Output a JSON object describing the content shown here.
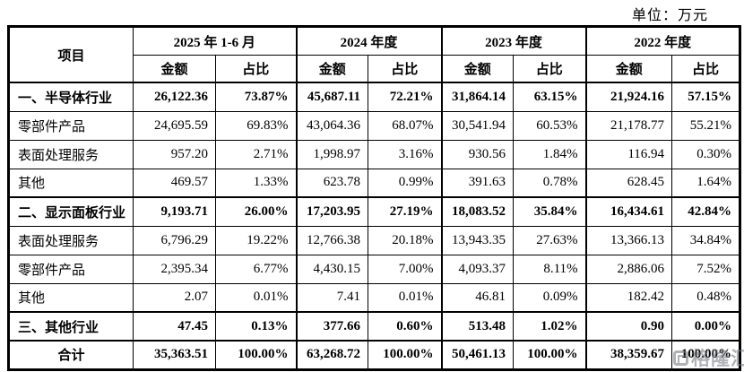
{
  "meta": {
    "unit_label": "单位：万元"
  },
  "table": {
    "item_header": "项目",
    "amount_header": "金额",
    "ratio_header": "占比",
    "period_groups": [
      "2025 年 1-6 月",
      "2024 年度",
      "2023 年度",
      "2022 年度"
    ],
    "rows": [
      {
        "label": "一、半导体行业",
        "bold": true,
        "center": false,
        "values": [
          "26,122.36",
          "73.87%",
          "45,687.11",
          "72.21%",
          "31,864.14",
          "63.15%",
          "21,924.16",
          "57.15%"
        ]
      },
      {
        "label": "零部件产品",
        "bold": false,
        "center": false,
        "values": [
          "24,695.59",
          "69.83%",
          "43,064.36",
          "68.07%",
          "30,541.94",
          "60.53%",
          "21,178.77",
          "55.21%"
        ]
      },
      {
        "label": "表面处理服务",
        "bold": false,
        "center": false,
        "values": [
          "957.20",
          "2.71%",
          "1,998.97",
          "3.16%",
          "930.56",
          "1.84%",
          "116.94",
          "0.30%"
        ]
      },
      {
        "label": "其他",
        "bold": false,
        "center": false,
        "values": [
          "469.57",
          "1.33%",
          "623.78",
          "0.99%",
          "391.63",
          "0.78%",
          "628.45",
          "1.64%"
        ]
      },
      {
        "label": "二、显示面板行业",
        "bold": true,
        "center": false,
        "values": [
          "9,193.71",
          "26.00%",
          "17,203.95",
          "27.19%",
          "18,083.52",
          "35.84%",
          "16,434.61",
          "42.84%"
        ]
      },
      {
        "label": "表面处理服务",
        "bold": false,
        "center": false,
        "values": [
          "6,796.29",
          "19.22%",
          "12,766.38",
          "20.18%",
          "13,943.35",
          "27.63%",
          "13,366.13",
          "34.84%"
        ]
      },
      {
        "label": "零部件产品",
        "bold": false,
        "center": false,
        "values": [
          "2,395.34",
          "6.77%",
          "4,430.15",
          "7.00%",
          "4,093.37",
          "8.11%",
          "2,886.06",
          "7.52%"
        ]
      },
      {
        "label": "其他",
        "bold": false,
        "center": false,
        "values": [
          "2.07",
          "0.01%",
          "7.41",
          "0.01%",
          "46.81",
          "0.09%",
          "182.42",
          "0.48%"
        ]
      },
      {
        "label": "三、其他行业",
        "bold": true,
        "center": false,
        "values": [
          "47.45",
          "0.13%",
          "377.66",
          "0.60%",
          "513.48",
          "1.02%",
          "0.90",
          "0.00%"
        ]
      },
      {
        "label": "合计",
        "bold": true,
        "center": true,
        "values": [
          "35,363.51",
          "100.00%",
          "63,268.72",
          "100.00%",
          "50,461.13",
          "100.00%",
          "38,359.67",
          "100.00%"
        ]
      }
    ]
  },
  "watermark": {
    "text": "格隆汇",
    "color": "#6f747a"
  }
}
